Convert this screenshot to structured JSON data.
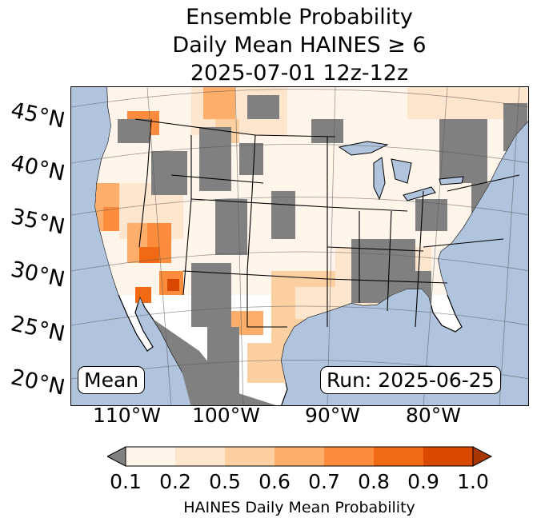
{
  "title": {
    "line1": "Ensemble Probability",
    "line2": "Daily Mean HAINES ≥ 6",
    "line3": "2025-07-01 12z-12z"
  },
  "map": {
    "lat_labels": [
      "45°N",
      "40°N",
      "35°N",
      "30°N",
      "25°N",
      "20°N"
    ],
    "lon_labels": [
      "110°W",
      "100°W",
      "90°W",
      "80°W"
    ],
    "mean_label": "Mean",
    "run_label": "Run: 2025-06-25",
    "colors": {
      "ocean": "#b0c4de",
      "land": "#ffffff",
      "no_data": "#808080",
      "boundaries": "#000000",
      "graticule": "#555555"
    }
  },
  "colorbar": {
    "label": "HAINES Daily Mean Probability",
    "tick_labels": [
      "0.1",
      "0.2",
      "0.5",
      "0.6",
      "0.7",
      "0.8",
      "0.9",
      "1.0"
    ],
    "under_color": "#808080",
    "over_color": "#a63603",
    "bin_colors": [
      "#fff5eb",
      "#fee6ce",
      "#fdd0a2",
      "#fdae6b",
      "#fd8d3c",
      "#f16913",
      "#d94801"
    ]
  }
}
